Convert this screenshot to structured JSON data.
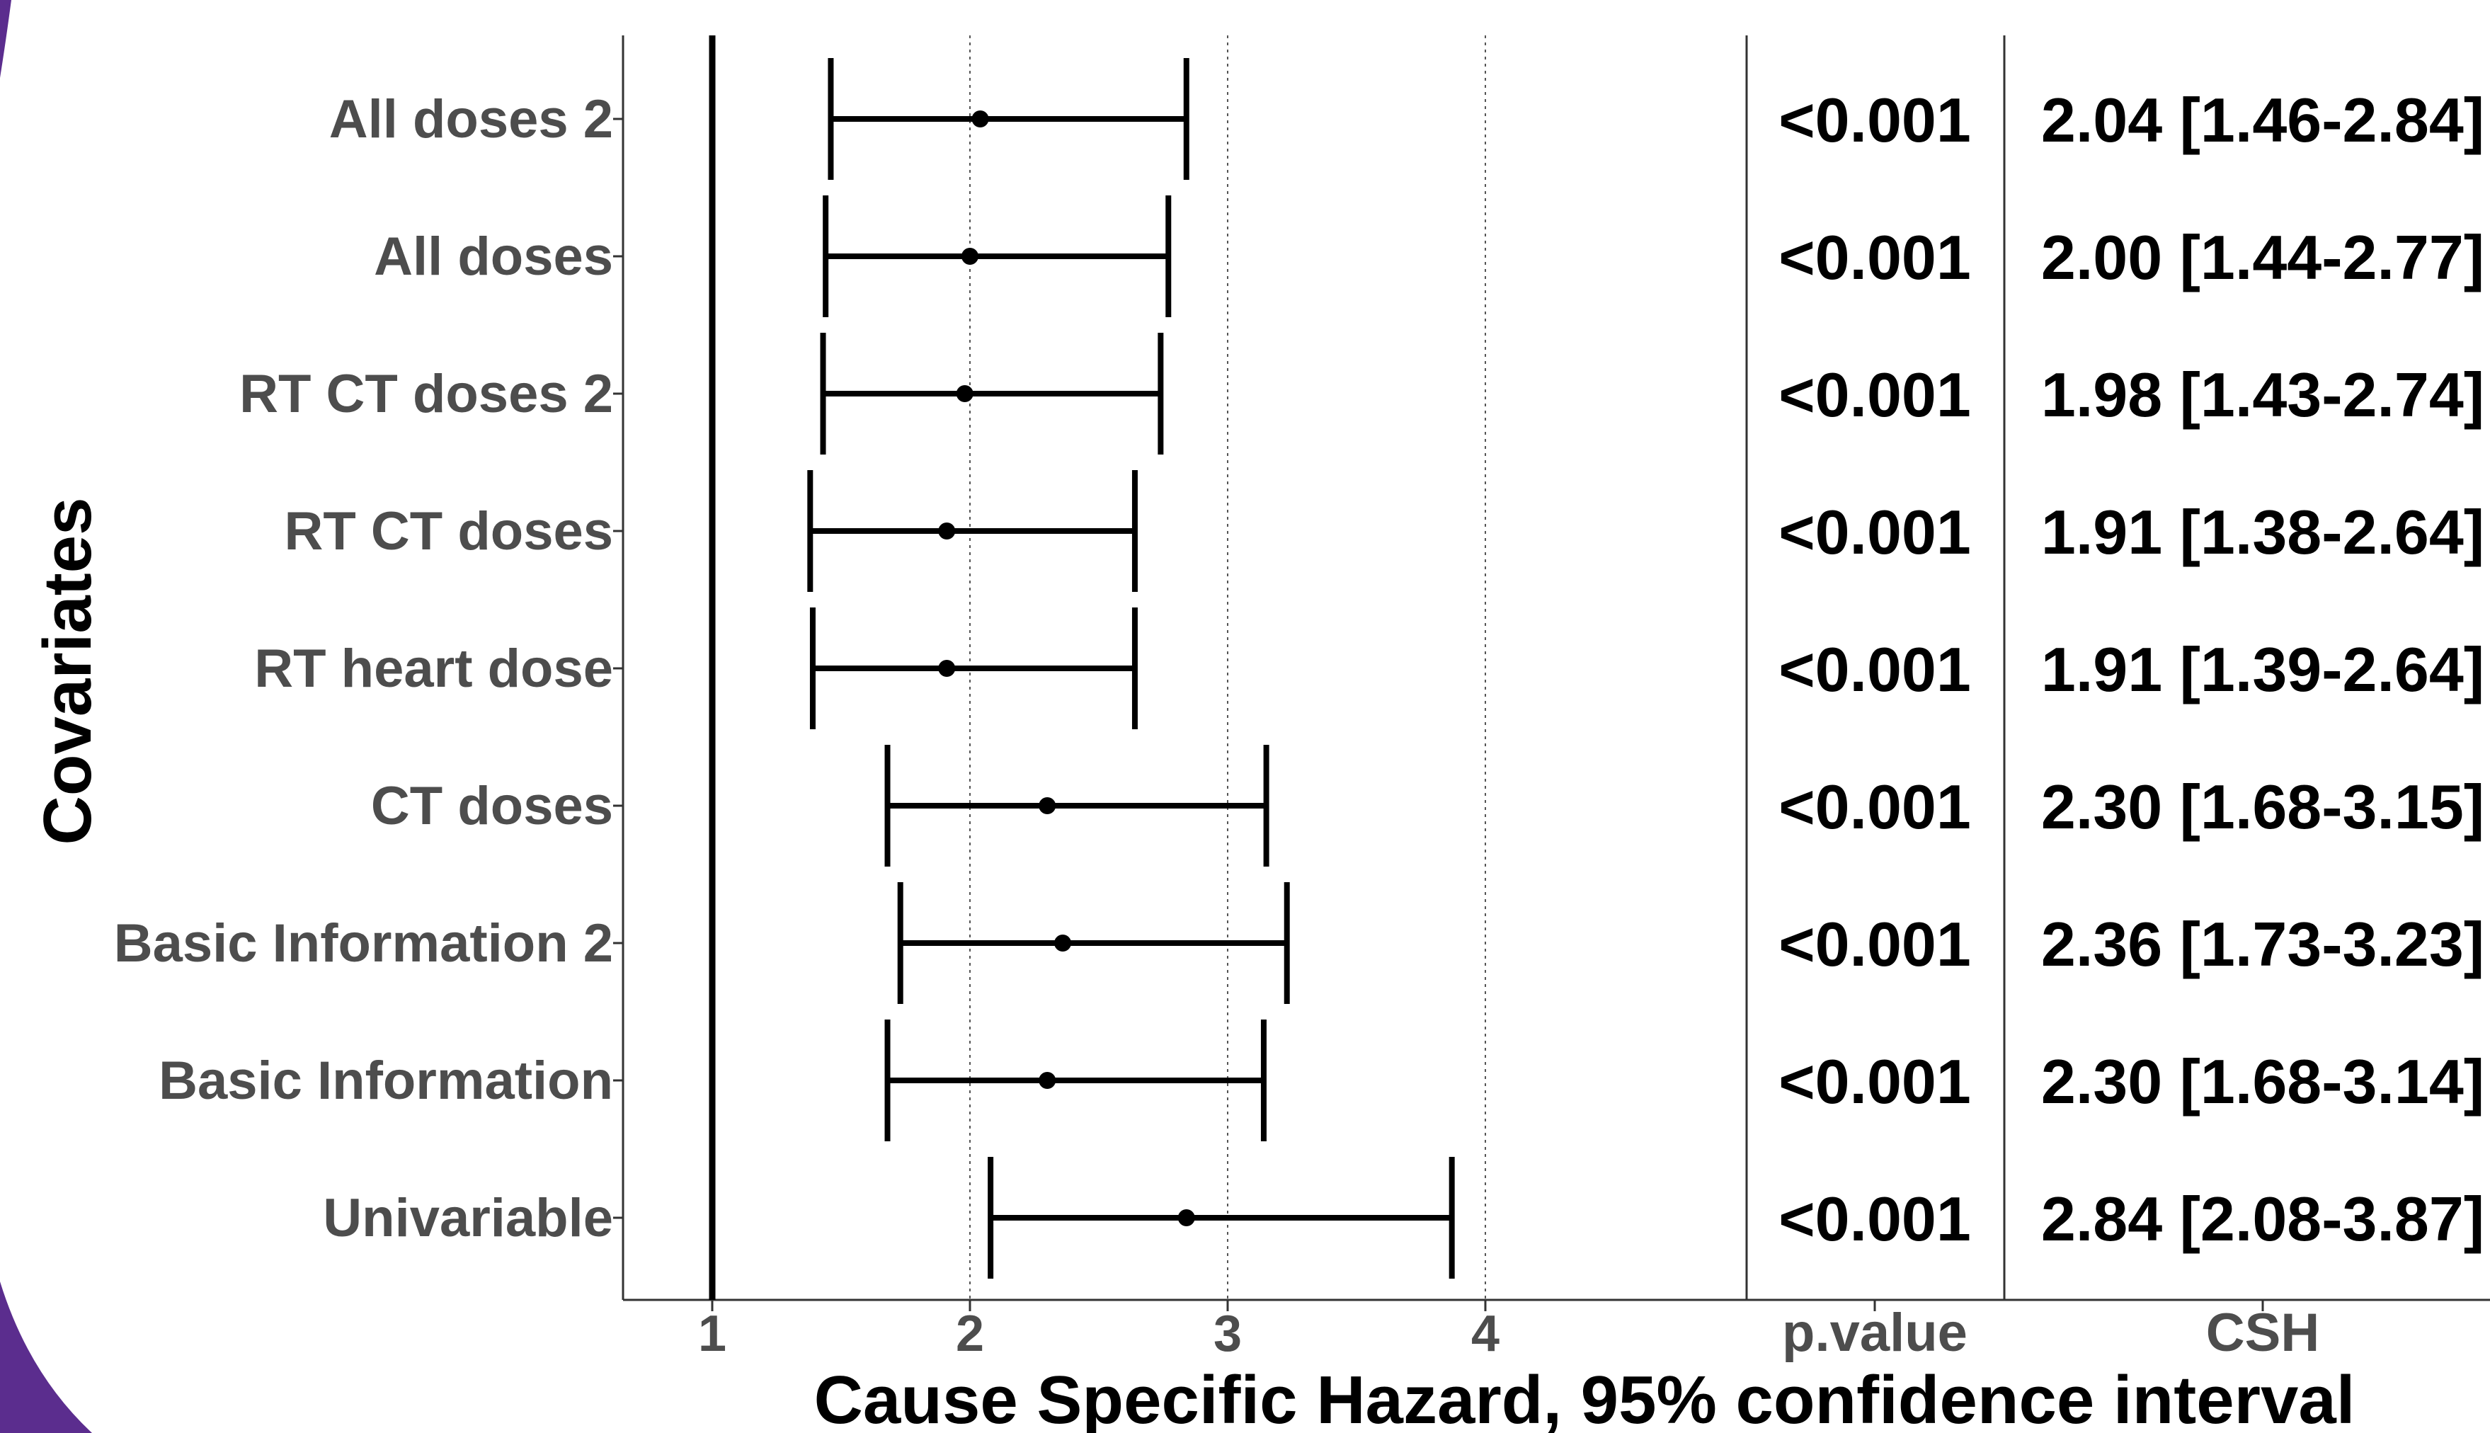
{
  "chart_data": {
    "type": "forest",
    "xlabel": "Cause Specific Hazard, 95% confidence interval",
    "ylabel": "Covariates",
    "xlim": [
      0.65,
      4.95
    ],
    "xticks": [
      1,
      2,
      3,
      4
    ],
    "reference_line": 1,
    "grid": "dotted vertical at 2, 3, 4",
    "columns": {
      "pvalue_header": "p.value",
      "csh_header": "CSH"
    },
    "rows": [
      {
        "label": "All doses 2",
        "estimate": 2.04,
        "lower": 1.46,
        "upper": 2.84,
        "pvalue": "<0.001",
        "csh": "2.04 [1.46-2.84]"
      },
      {
        "label": "All doses",
        "estimate": 2.0,
        "lower": 1.44,
        "upper": 2.77,
        "pvalue": "<0.001",
        "csh": "2.00 [1.44-2.77]"
      },
      {
        "label": "RT CT doses 2",
        "estimate": 1.98,
        "lower": 1.43,
        "upper": 2.74,
        "pvalue": "<0.001",
        "csh": "1.98 [1.43-2.74]"
      },
      {
        "label": "RT CT doses",
        "estimate": 1.91,
        "lower": 1.38,
        "upper": 2.64,
        "pvalue": "<0.001",
        "csh": "1.91 [1.38-2.64]"
      },
      {
        "label": "RT heart dose",
        "estimate": 1.91,
        "lower": 1.39,
        "upper": 2.64,
        "pvalue": "<0.001",
        "csh": "1.91 [1.39-2.64]"
      },
      {
        "label": "CT doses",
        "estimate": 2.3,
        "lower": 1.68,
        "upper": 3.15,
        "pvalue": "<0.001",
        "csh": "2.30 [1.68-3.15]"
      },
      {
        "label": "Basic Information 2",
        "estimate": 2.36,
        "lower": 1.73,
        "upper": 3.23,
        "pvalue": "<0.001",
        "csh": "2.36 [1.73-3.23]"
      },
      {
        "label": "Basic Information",
        "estimate": 2.3,
        "lower": 1.68,
        "upper": 3.14,
        "pvalue": "<0.001",
        "csh": "2.30 [1.68-3.14]"
      },
      {
        "label": "Univariable",
        "estimate": 2.84,
        "lower": 2.08,
        "upper": 3.87,
        "pvalue": "<0.001",
        "csh": "2.84 [2.08-3.87]"
      }
    ]
  },
  "colors": {
    "decor_purple": "#5b2d8e",
    "label_gray": "#4d4d4d",
    "ink": "#000000"
  }
}
